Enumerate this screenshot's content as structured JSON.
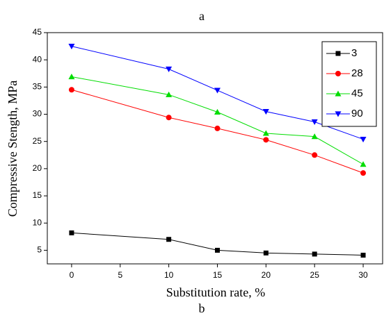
{
  "chart_data": {
    "type": "line",
    "title": "a",
    "caption": "b",
    "x_label": "Substitution rate, %",
    "y_label": "Compressive Stength, MPa",
    "x": [
      0,
      10,
      15,
      20,
      25,
      30
    ],
    "xlim": [
      -2.5,
      32
    ],
    "xticks": [
      0,
      5,
      10,
      15,
      20,
      25,
      30
    ],
    "ylim": [
      2.5,
      45
    ],
    "yticks": [
      5,
      10,
      15,
      20,
      25,
      30,
      35,
      40,
      45
    ],
    "legend": "upper right",
    "series": [
      {
        "name": "3",
        "color": "#000000",
        "marker": "square",
        "values": [
          8.2,
          7.0,
          5.0,
          4.5,
          4.3,
          4.1
        ]
      },
      {
        "name": "28",
        "color": "#ff0000",
        "marker": "circle",
        "values": [
          34.5,
          29.4,
          27.4,
          25.3,
          22.5,
          19.2
        ]
      },
      {
        "name": "45",
        "color": "#00dd00",
        "marker": "triangle-up",
        "values": [
          36.9,
          33.6,
          30.4,
          26.5,
          25.9,
          20.8
        ]
      },
      {
        "name": "90",
        "color": "#0000ff",
        "marker": "triangle-down",
        "values": [
          42.5,
          38.3,
          34.4,
          30.5,
          28.6,
          25.4
        ]
      }
    ]
  }
}
